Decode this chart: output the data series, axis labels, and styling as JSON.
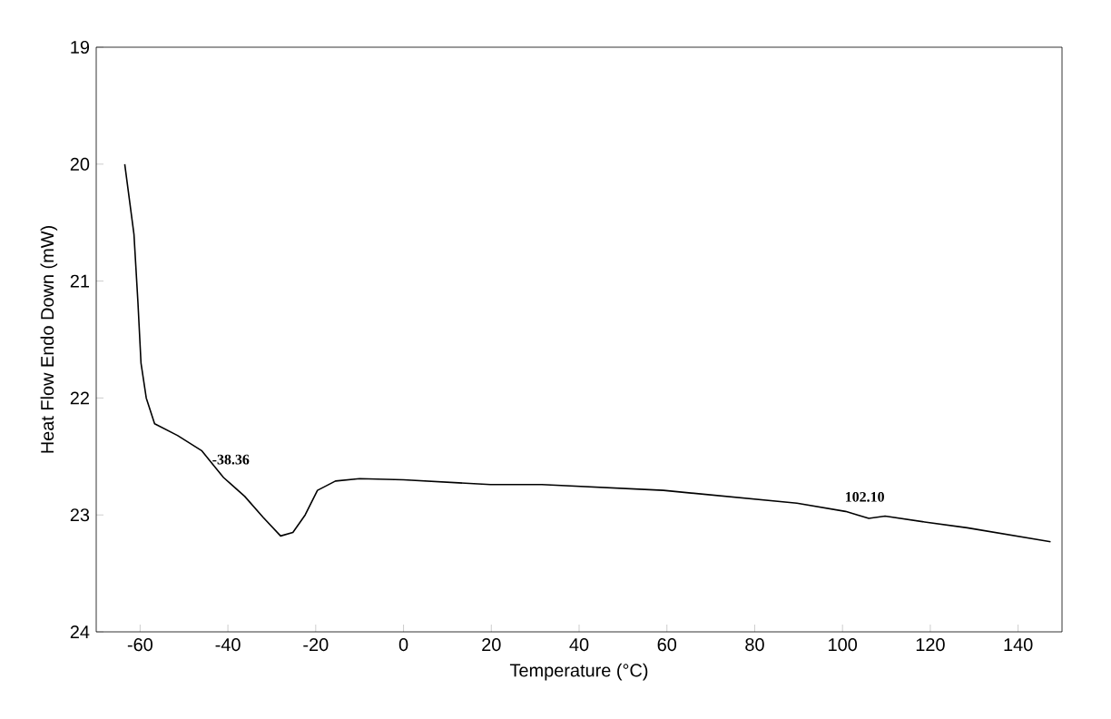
{
  "chart_data": {
    "type": "line",
    "xlabel": "Temperature (°C)",
    "ylabel": "Heat Flow Endo Down (mW)",
    "xlim": [
      -70,
      150
    ],
    "ylim": [
      24,
      19
    ],
    "xticks": [
      -60,
      -40,
      -20,
      0,
      20,
      40,
      60,
      80,
      100,
      120,
      140
    ],
    "yticks": [
      19,
      20,
      21,
      22,
      23,
      24
    ],
    "grid": false,
    "marker": "none",
    "line_style": "solid",
    "series": [
      {
        "color": "#000000",
        "x": [
          -63.5,
          -61.4,
          -60.5,
          -59.8,
          -58.6,
          -56.7,
          -51.5,
          -46,
          -41,
          -36.2,
          -32,
          -28,
          -25.2,
          -22.4,
          -19.6,
          -15.5,
          -10,
          0,
          19.8,
          31.5,
          59.2,
          89.6,
          100.7,
          103.4,
          106,
          109.7,
          118.7,
          128.4,
          147.4
        ],
        "values": [
          20.0,
          20.6,
          21.18,
          21.7,
          22.0,
          22.22,
          22.32,
          22.45,
          22.68,
          22.84,
          23.02,
          23.18,
          23.15,
          23.0,
          22.79,
          22.71,
          22.69,
          22.7,
          22.74,
          22.74,
          22.79,
          22.9,
          22.97,
          23.0,
          23.03,
          23.01,
          23.06,
          23.11,
          23.23
        ]
      }
    ],
    "annotations": [
      {
        "text": "-38.36",
        "x": -41,
        "y": 22.68
      },
      {
        "text": "102.10",
        "x": 103.4,
        "y": 23.0
      }
    ]
  }
}
